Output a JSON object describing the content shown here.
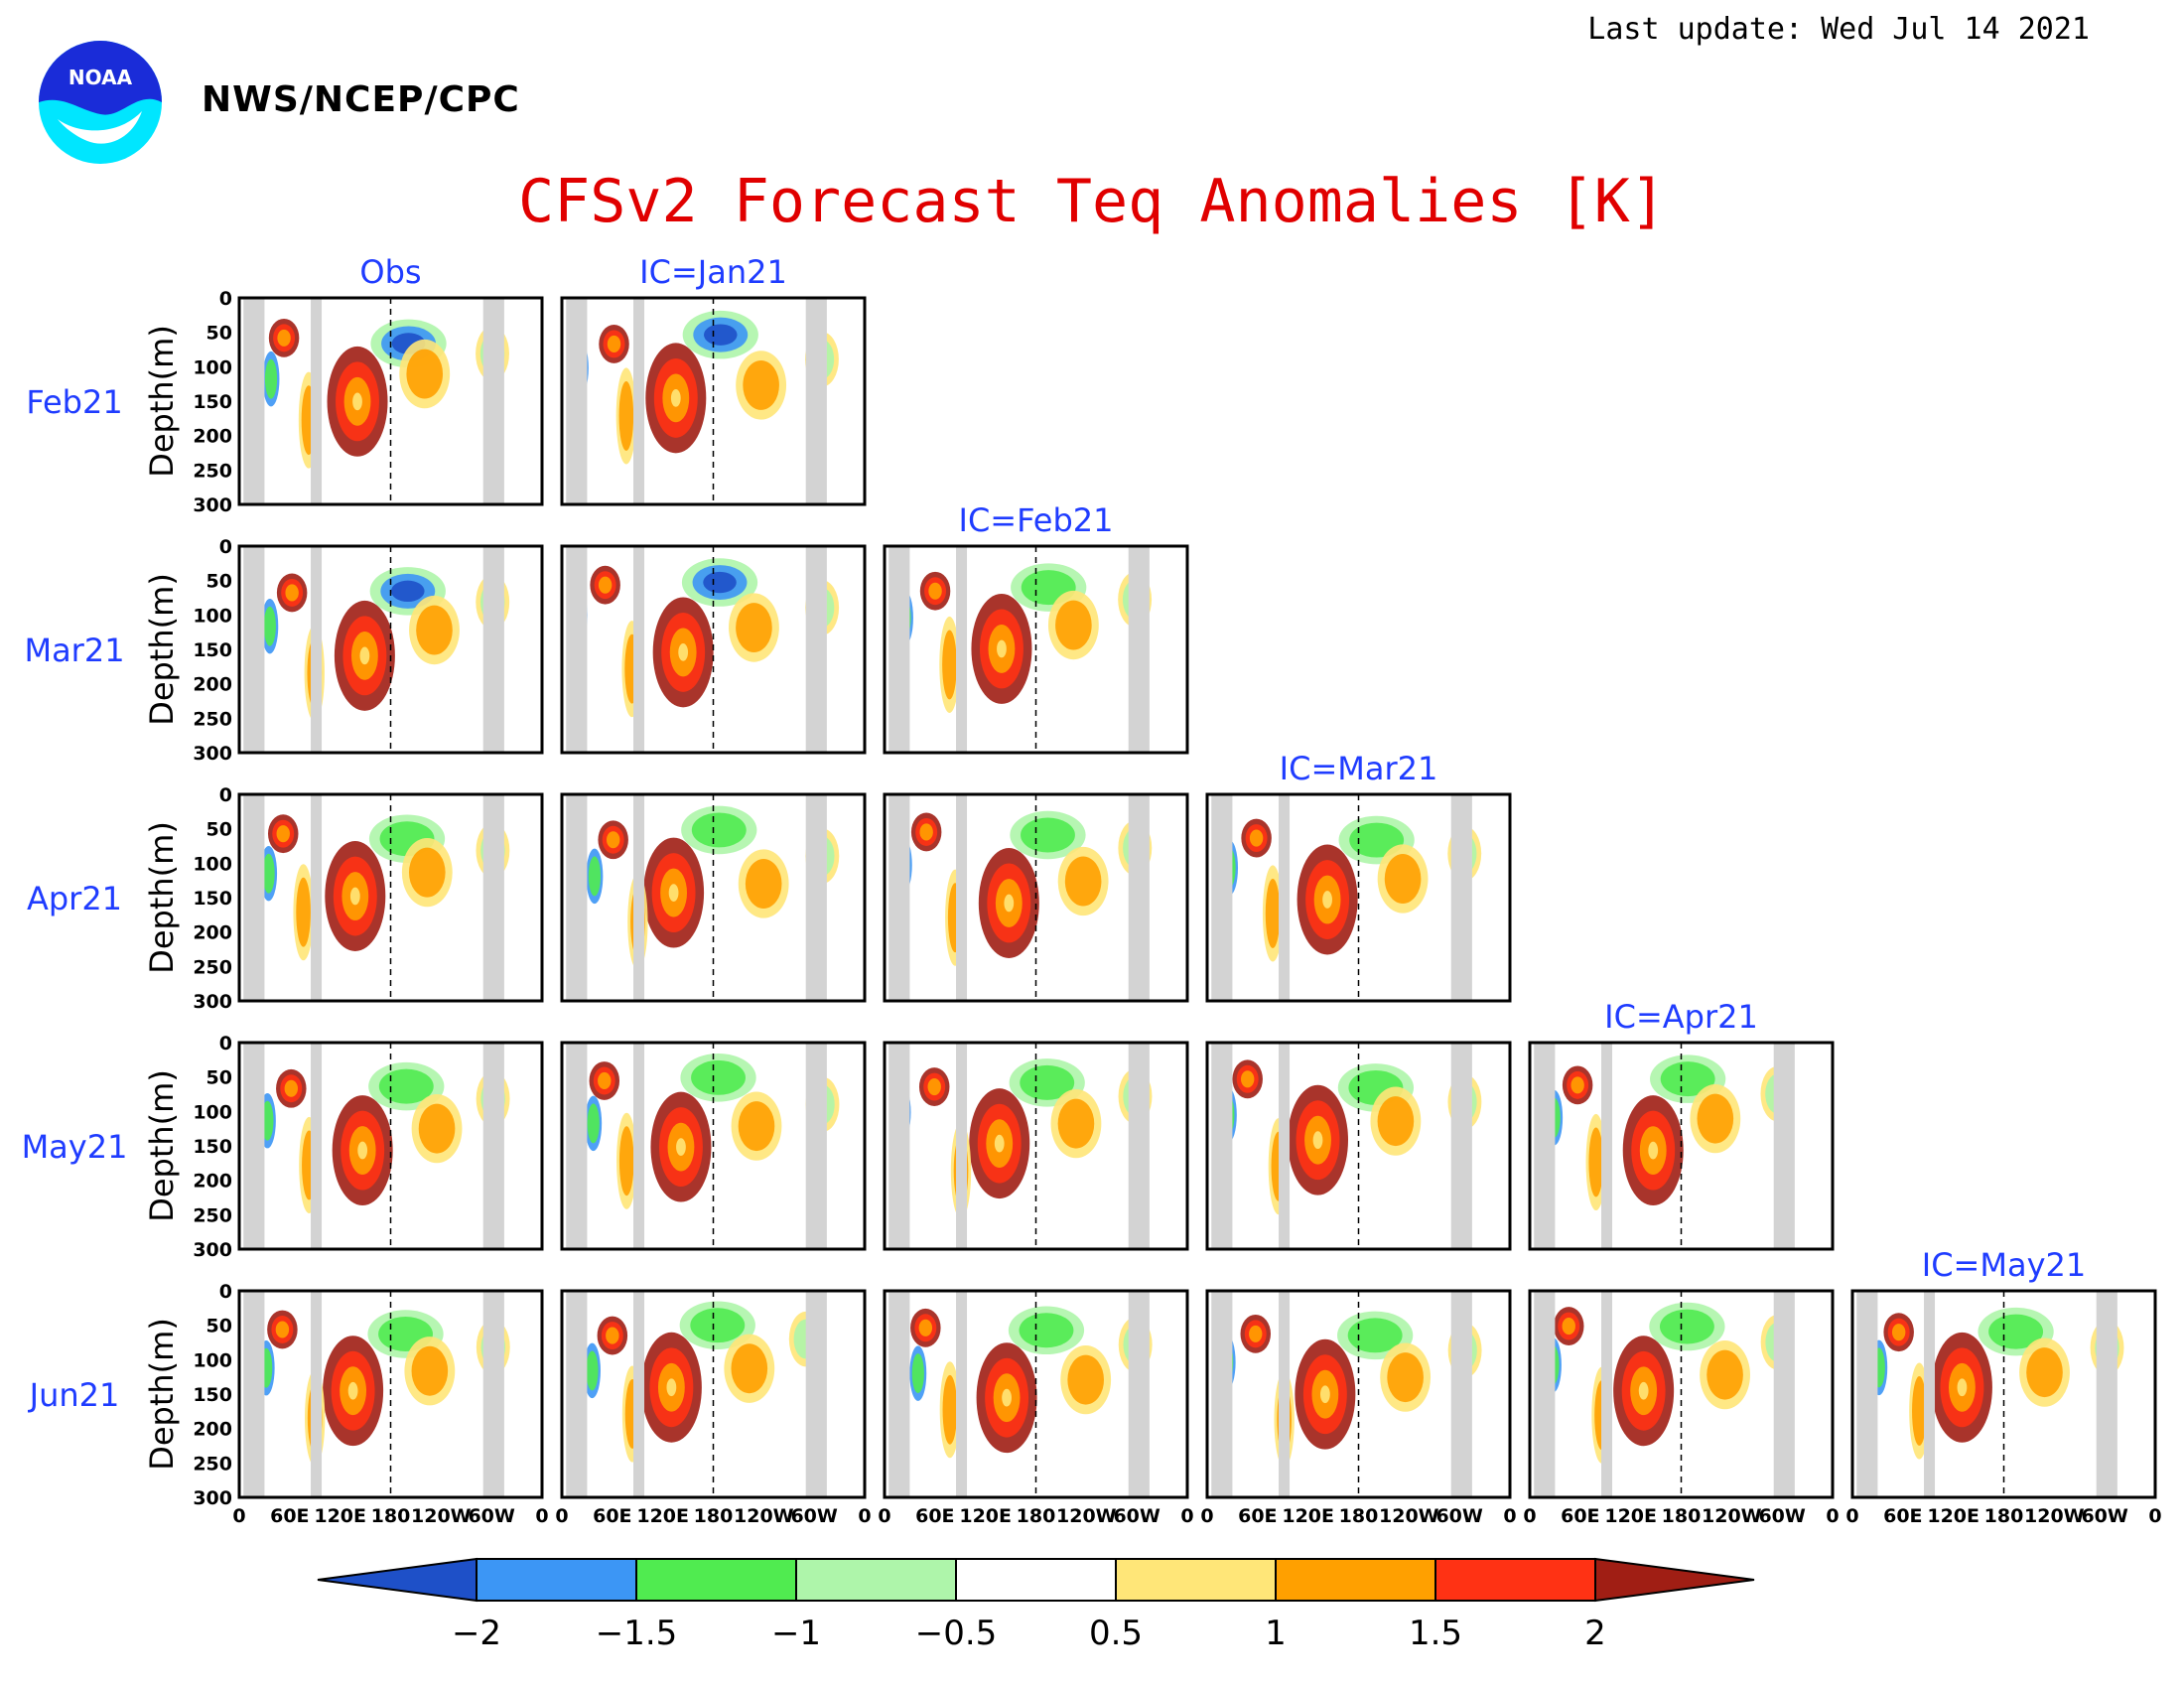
{
  "header": {
    "last_update": "Last update: Wed Jul 14 2021",
    "agency": "NWS/NCEP/CPC",
    "logo_text": "NOAA"
  },
  "colors": {
    "title": "#e00000",
    "labels": "#1f3cff",
    "land_mask": "#d3d3d3",
    "colorbar": [
      "#1e50c8",
      "#3c96f5",
      "#50eb50",
      "#aef5aa",
      "#ffffff",
      "#ffe678",
      "#ffa000",
      "#ff3214",
      "#a01e14"
    ]
  },
  "chart_data": {
    "type": "heatmap",
    "title": "CFSv2 Forecast Teq Anomalies [K]",
    "panel_ylabel": "Depth(m)",
    "ylim": [
      0,
      300
    ],
    "yticks": [
      "0",
      "50",
      "100",
      "150",
      "200",
      "250",
      "300"
    ],
    "xticks": [
      "0",
      "60E",
      "120E",
      "180",
      "120W",
      "60W",
      "0"
    ],
    "rows": [
      "Feb21",
      "Mar21",
      "Apr21",
      "May21",
      "Jun21"
    ],
    "columns": [
      "Obs",
      "IC=Jan21",
      "IC=Feb21",
      "IC=Mar21",
      "IC=Apr21",
      "IC=May21"
    ],
    "panels_per_row": [
      2,
      3,
      4,
      5,
      6
    ],
    "colorbar": {
      "levels": [
        "−2",
        "−1.5",
        "−1",
        "−0.5",
        "0.5",
        "1",
        "1.5",
        "2"
      ]
    }
  }
}
